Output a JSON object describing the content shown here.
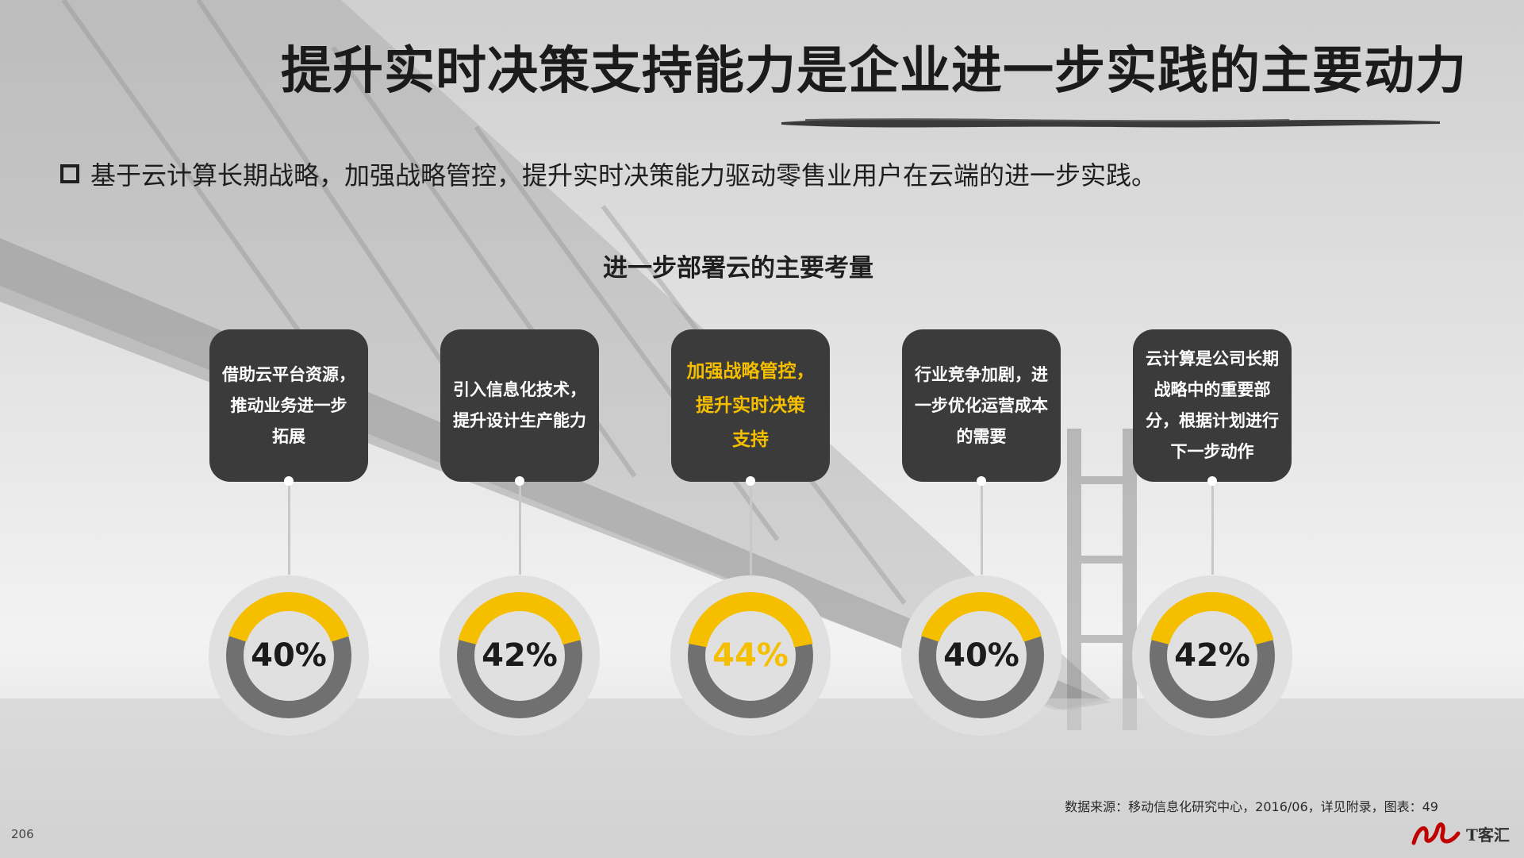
{
  "title": "提升实时决策支持能力是企业进一步实践的主要动力",
  "bullet": "基于云计算长期战略，加强战略管控，提升实时决策能力驱动零售业用户在云端的进一步实践。",
  "subtitle": "进一步部署云的主要考量",
  "items": [
    {
      "lines": [
        "借助云平台资源，",
        "推动业务进一步",
        "拓展"
      ],
      "pct_label": "40%",
      "highlight": false
    },
    {
      "lines": [
        "引入信息化技术，",
        "提升设计生产能力"
      ],
      "pct_label": "42%",
      "highlight": false
    },
    {
      "lines": [
        "加强战略管控，",
        "提升实时决策",
        "支持"
      ],
      "pct_label": "44%",
      "highlight": true
    },
    {
      "lines": [
        "行业竞争加剧，进",
        "一步优化运营成本",
        "的需要"
      ],
      "pct_label": "40%",
      "highlight": false
    },
    {
      "lines": [
        "云计算是公司长期",
        "战略中的重要部",
        "分，根据计划进行",
        "下一步动作"
      ],
      "pct_label": "42%",
      "highlight": false
    }
  ],
  "chart_data": {
    "type": "gauge",
    "categories": [
      "借助云平台资源，推动业务进一步拓展",
      "引入信息化技术，提升设计生产能力",
      "加强战略管控，提升实时决策支持",
      "行业竞争加剧，进一步优化运营成本的需要",
      "云计算是公司长期战略中的重要部分，根据计划进行下一步动作"
    ],
    "values": [
      40,
      42,
      44,
      40,
      42
    ],
    "unit": "%",
    "title": "进一步部署云的主要考量"
  },
  "source": "数据来源：移动信息化研究中心，2016/06，详见附录，图表：49",
  "page_number": "206",
  "logo": {
    "text": "T客汇"
  },
  "colors": {
    "accent": "#f5bf00",
    "box": "#3b3b3b",
    "ring_gray": "#707070",
    "ring_bg": "#e0e0e0"
  }
}
